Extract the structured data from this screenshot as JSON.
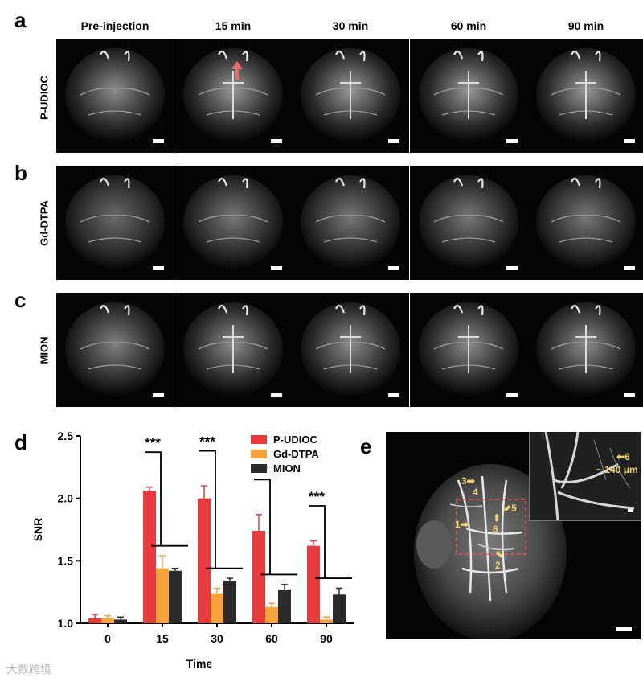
{
  "panel_letters": {
    "a": "a",
    "b": "b",
    "c": "c",
    "d": "d",
    "e": "e"
  },
  "columns": [
    "Pre-injection",
    "15 min",
    "30 min",
    "60 min",
    "90 min"
  ],
  "rows": [
    "P-UDIOC",
    "Gd-DTPA",
    "MION"
  ],
  "chart_data": {
    "type": "bar",
    "categories": [
      "0",
      "15",
      "30",
      "60",
      "90"
    ],
    "series": [
      {
        "name": "P-UDIOC",
        "color": "#e83b3b",
        "values": [
          1.04,
          2.06,
          2.0,
          1.74,
          1.62
        ],
        "errors": [
          0.03,
          0.03,
          0.1,
          0.13,
          0.04
        ]
      },
      {
        "name": "Gd-DTPA",
        "color": "#f5a33a",
        "values": [
          1.04,
          1.44,
          1.24,
          1.13,
          1.03
        ],
        "errors": [
          0.02,
          0.1,
          0.04,
          0.03,
          0.02
        ]
      },
      {
        "name": "MION",
        "color": "#2b2b2b",
        "values": [
          1.03,
          1.42,
          1.34,
          1.27,
          1.23
        ],
        "errors": [
          0.02,
          0.02,
          0.02,
          0.04,
          0.05
        ]
      }
    ],
    "xlabel": "Time",
    "ylabel": "SNR",
    "ylim": [
      1.0,
      2.5
    ],
    "yticks": [
      "1.0",
      "1.5",
      "2.0",
      "2.5"
    ],
    "significance": [
      "***",
      "***",
      "***",
      "**",
      "***"
    ],
    "legend_position": "top-right"
  },
  "panel_e": {
    "labels": [
      "1",
      "2",
      "3",
      "4",
      "5",
      "6"
    ],
    "inset_label": "6",
    "inset_size": "~ 140 μm"
  },
  "watermark": "大数跨境"
}
